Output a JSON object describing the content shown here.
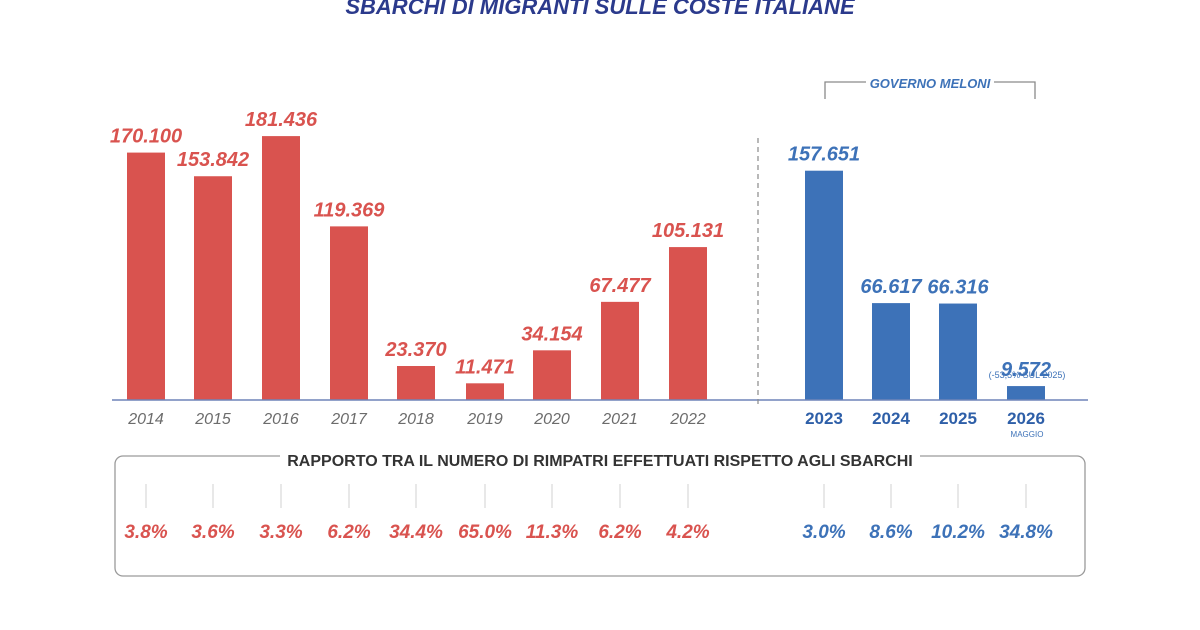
{
  "title": "SBARCHI DI MIGRANTI SULLE COSTE ITALIANE",
  "colors": {
    "red": "#d9534f",
    "blue": "#3d72b8",
    "grey": "#8a8a8a"
  },
  "governo_label": "GOVERNO MELONI",
  "note_2026": "(-53,5% SUL 2025)",
  "note_2026_sub": "MAGGIO",
  "ratio_title": "RAPPORTO TRA IL NUMERO DI RIMPATRI EFFETTUATI RISPETTO AGLI SBARCHI",
  "chart_data": {
    "type": "bar",
    "title": "SBARCHI DI MIGRANTI SULLE COSTE ITALIANE",
    "categories": [
      "2014",
      "2015",
      "2016",
      "2017",
      "2018",
      "2019",
      "2020",
      "2021",
      "2022",
      "2023",
      "2024",
      "2025",
      "2026"
    ],
    "values": [
      170100,
      153842,
      181436,
      119369,
      23370,
      11471,
      34154,
      67477,
      105131,
      157651,
      66617,
      66316,
      9572
    ],
    "value_labels": [
      "170.100",
      "153.842",
      "181.436",
      "119.369",
      "23.370",
      "11.471",
      "34.154",
      "67.477",
      "105.131",
      "157.651",
      "66.617",
      "66.316",
      "9.572"
    ],
    "groups": [
      "red",
      "red",
      "red",
      "red",
      "red",
      "red",
      "red",
      "red",
      "red",
      "blue",
      "blue",
      "blue",
      "blue"
    ],
    "ratios": [
      "3.8%",
      "3.6%",
      "3.3%",
      "6.2%",
      "34.4%",
      "65.0%",
      "11.3%",
      "6.2%",
      "4.2%",
      "3.0%",
      "8.6%",
      "10.2%",
      "34.8%"
    ],
    "ylim": [
      0,
      200000
    ],
    "grid": false,
    "legend": "none"
  }
}
